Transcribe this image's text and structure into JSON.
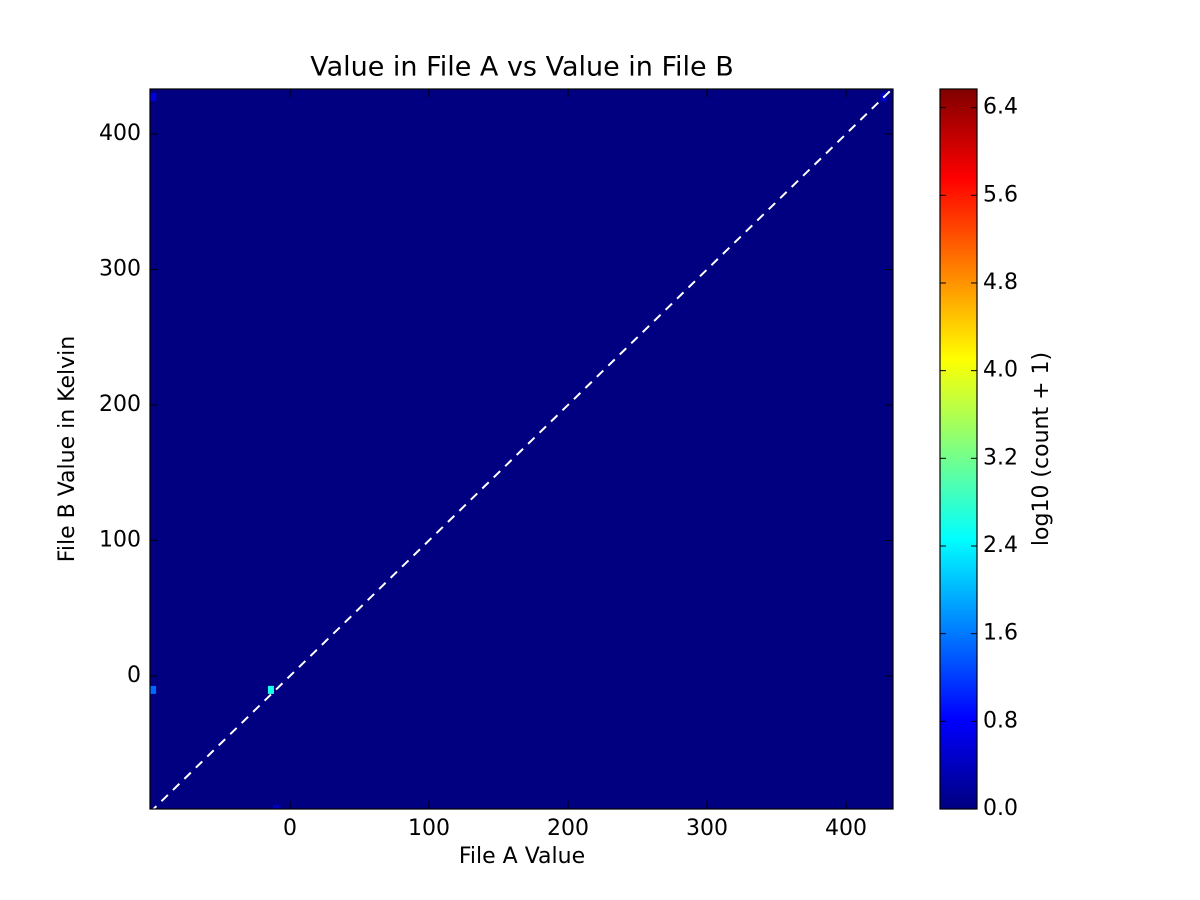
{
  "chart_data": {
    "type": "hist2d",
    "title": "Value in File A vs Value in File B",
    "xlabel": "File A Value",
    "ylabel": "File B Value in Kelvin",
    "colorbar_label": "log10 (count + 1)",
    "colormap": "jet",
    "xlim": [
      -100.7,
      433.8
    ],
    "ylim": [
      -98.2,
      433.2
    ],
    "xticks": [
      0,
      100,
      200,
      300,
      400
    ],
    "yticks": [
      0,
      100,
      200,
      300,
      400
    ],
    "cells": {
      "x": [
        -98.5,
        -13.7,
        -98.3,
        -10.0,
        427.0
      ],
      "y": [
        -10.3,
        -10.3,
        427.3,
        -98.0,
        427.0
      ],
      "values": [
        1.5,
        2.6,
        0.6,
        0.4,
        0.5
      ]
    },
    "reference_line": {
      "x": [
        -100.7,
        433.8
      ],
      "y": [
        -100.7,
        433.8
      ]
    },
    "clim": [
      0,
      6.57
    ],
    "cticks": [
      {
        "value": 0,
        "label": "0.0"
      },
      {
        "value": 0.8,
        "label": "0.8"
      },
      {
        "value": 1.6,
        "label": "1.6"
      },
      {
        "value": 2.4,
        "label": "2.4"
      },
      {
        "value": 3.2,
        "label": "3.2"
      },
      {
        "value": 4.0,
        "label": "4.0"
      },
      {
        "value": 4.8,
        "label": "4.8"
      },
      {
        "value": 5.6,
        "label": "5.6"
      },
      {
        "value": 6.4,
        "label": "6.4"
      }
    ]
  }
}
